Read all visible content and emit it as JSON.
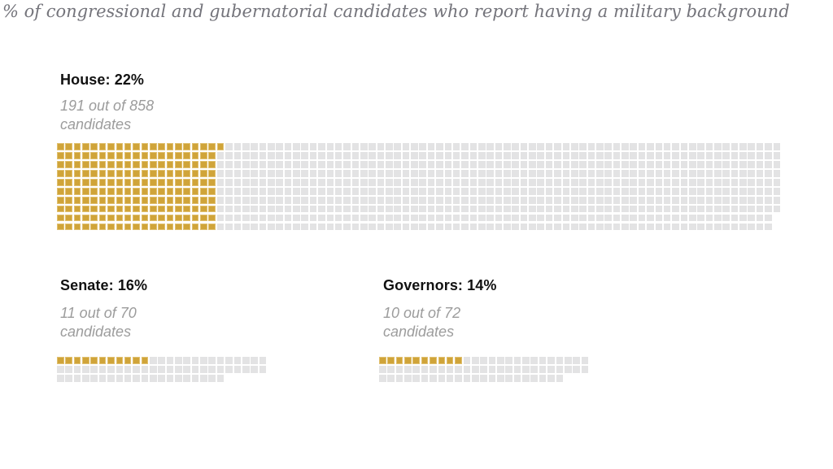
{
  "title": "% of congressional and gubernatorial candidates who report having a military background",
  "colors": {
    "filled": "#d0a439",
    "empty": "#e3e3e4"
  },
  "sections": [
    {
      "id": "house",
      "label": "House: 22%",
      "sub_line1": "191 out of 858",
      "sub_line2": "candidates",
      "rows": [
        {
          "cells": 86,
          "filled": 20
        },
        {
          "cells": 86,
          "filled": 19
        },
        {
          "cells": 86,
          "filled": 19
        },
        {
          "cells": 86,
          "filled": 19
        },
        {
          "cells": 86,
          "filled": 19
        },
        {
          "cells": 86,
          "filled": 19
        },
        {
          "cells": 86,
          "filled": 19
        },
        {
          "cells": 86,
          "filled": 19
        },
        {
          "cells": 85,
          "filled": 19
        },
        {
          "cells": 85,
          "filled": 19
        }
      ]
    },
    {
      "id": "senate",
      "label": "Senate: 16%",
      "sub_line1": "11 out of 70",
      "sub_line2": "candidates",
      "rows": [
        {
          "cells": 25,
          "filled": 11
        },
        {
          "cells": 25,
          "filled": 0
        },
        {
          "cells": 20,
          "filled": 0
        }
      ]
    },
    {
      "id": "governors",
      "label": "Governors: 14%",
      "sub_line1": "10 out of 72",
      "sub_line2": "candidates",
      "rows": [
        {
          "cells": 25,
          "filled": 10
        },
        {
          "cells": 25,
          "filled": 0
        },
        {
          "cells": 22,
          "filled": 0
        }
      ]
    }
  ],
  "chart_data": {
    "type": "waffle",
    "title": "% of congressional and gubernatorial candidates who report having a military background",
    "legend_position": "none",
    "series": [
      {
        "name": "House",
        "percent": 22,
        "with_military_background": 191,
        "total_candidates": 858
      },
      {
        "name": "Senate",
        "percent": 16,
        "with_military_background": 11,
        "total_candidates": 70
      },
      {
        "name": "Governors",
        "percent": 14,
        "with_military_background": 10,
        "total_candidates": 72
      }
    ],
    "colors": {
      "with_military_background": "#d0a439",
      "other_candidates": "#e3e3e4"
    }
  }
}
